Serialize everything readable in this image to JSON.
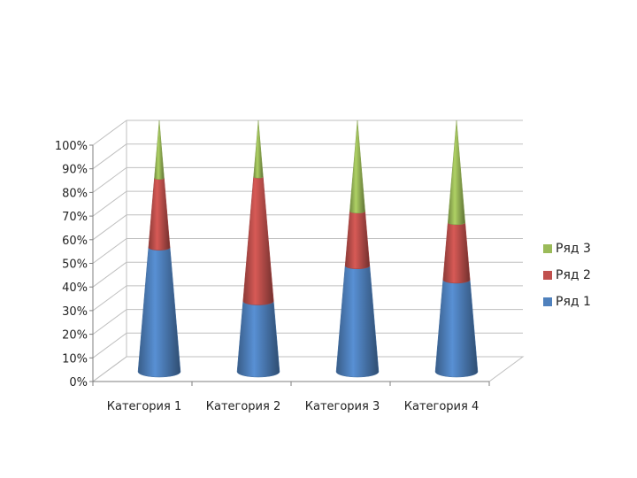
{
  "chart_data": {
    "type": "bar",
    "subtype": "100% stacked 3D cone",
    "categories": [
      "Категория 1",
      "Категория 2",
      "Категория 3",
      "Категория 4"
    ],
    "series": [
      {
        "name": "Ряд 1",
        "color": "#4f81bd",
        "values": [
          4.3,
          2.5,
          3.5,
          4.5
        ]
      },
      {
        "name": "Ряд 2",
        "color": "#c0504d",
        "values": [
          2.4,
          4.4,
          1.8,
          2.8
        ]
      },
      {
        "name": "Ряд 3",
        "color": "#9bbb59",
        "values": [
          2.0,
          2.0,
          3.0,
          5.0
        ]
      }
    ],
    "y_ticks": [
      "0%",
      "10%",
      "20%",
      "30%",
      "40%",
      "50%",
      "60%",
      "70%",
      "80%",
      "90%",
      "100%"
    ],
    "ylim": [
      0,
      1
    ],
    "grid": true,
    "legend": "right"
  }
}
